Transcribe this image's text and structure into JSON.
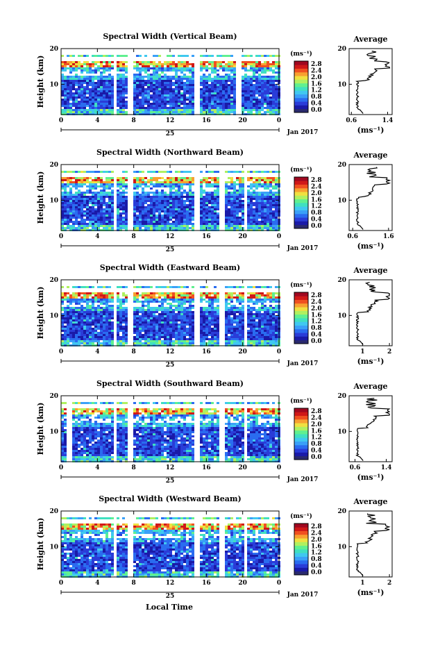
{
  "colors": {
    "colormap": [
      "#2a2a6e",
      "#1a1aa8",
      "#2a3cd8",
      "#2a6cf0",
      "#3aa0f8",
      "#40c8f0",
      "#40e0c0",
      "#60f090",
      "#b0f060",
      "#f0e040",
      "#f8a030",
      "#f05020",
      "#d01818",
      "#a00820"
    ],
    "background": "#ffffff"
  },
  "shared": {
    "date_label": "Jan 2017",
    "day_label": "25",
    "xlabel_bottom": "Local Time",
    "cbar_unit": "(ms⁻¹)",
    "cbar_ticks": [
      "0.0",
      "0.4",
      "0.8",
      "1.2",
      "1.6",
      "2.0",
      "2.4",
      "2.8"
    ],
    "profile_title": "Average",
    "profile_xlabel": "(ms⁻¹)"
  },
  "chart_data": [
    {
      "type": "heatmap",
      "title": "Spectral Width (Vertical Beam)",
      "ylabel": "Height (km)",
      "xticks": [
        "0",
        "4",
        "8",
        "12",
        "16",
        "20",
        "0"
      ],
      "xlim": [
        0,
        24
      ],
      "yticks": [
        "10",
        "20"
      ],
      "ylim": [
        1.5,
        20
      ],
      "colorbar": {
        "unit": "(ms⁻¹)",
        "range": [
          0.0,
          2.8
        ]
      },
      "profile": {
        "title": "Average",
        "xticks": [
          "0.6",
          "1.4"
        ],
        "xlim": [
          0.55,
          1.5
        ],
        "yticks": [
          "10",
          "20"
        ]
      }
    },
    {
      "type": "heatmap",
      "title": "Spectral Width (Northward Beam)",
      "ylabel": "Height (km)",
      "xticks": [
        "0",
        "4",
        "8",
        "12",
        "16",
        "20",
        "0"
      ],
      "xlim": [
        0,
        24
      ],
      "yticks": [
        "10",
        "20"
      ],
      "ylim": [
        1.5,
        20
      ],
      "colorbar": {
        "unit": "(ms⁻¹)",
        "range": [
          0.0,
          2.8
        ]
      },
      "profile": {
        "title": "Average",
        "xticks": [
          "0.6",
          "1.6"
        ],
        "xlim": [
          0.5,
          1.7
        ],
        "yticks": [
          "10",
          "20"
        ]
      }
    },
    {
      "type": "heatmap",
      "title": "Spectral Width (Eastward Beam)",
      "ylabel": "Height (km)",
      "xticks": [
        "0",
        "4",
        "8",
        "12",
        "16",
        "20",
        "0"
      ],
      "xlim": [
        0,
        24
      ],
      "yticks": [
        "10",
        "20"
      ],
      "ylim": [
        1.5,
        20
      ],
      "colorbar": {
        "unit": "(ms⁻¹)",
        "range": [
          0.0,
          2.8
        ]
      },
      "profile": {
        "title": "Average",
        "xticks": [
          "1",
          "2"
        ],
        "xlim": [
          0.5,
          2.1
        ],
        "yticks": [
          "10",
          "20"
        ]
      }
    },
    {
      "type": "heatmap",
      "title": "Spectral Width (Southward Beam)",
      "ylabel": "Height (km)",
      "xticks": [
        "0",
        "4",
        "8",
        "12",
        "16",
        "20",
        "0"
      ],
      "xlim": [
        0,
        24
      ],
      "yticks": [
        "10",
        "20"
      ],
      "ylim": [
        1.5,
        20
      ],
      "colorbar": {
        "unit": "(ms⁻¹)",
        "range": [
          0.0,
          2.8
        ]
      },
      "profile": {
        "title": "Average",
        "xticks": [
          "0.6",
          "1.4"
        ],
        "xlim": [
          0.45,
          1.55
        ],
        "yticks": [
          "10",
          "20"
        ]
      }
    },
    {
      "type": "heatmap",
      "title": "Spectral Width (Westward Beam)",
      "ylabel": "Height (km)",
      "xticks": [
        "0",
        "4",
        "8",
        "12",
        "16",
        "20",
        "0"
      ],
      "xlim": [
        0,
        24
      ],
      "yticks": [
        "10",
        "20"
      ],
      "ylim": [
        1.5,
        20
      ],
      "colorbar": {
        "unit": "(ms⁻¹)",
        "range": [
          0.0,
          2.8
        ]
      },
      "profile": {
        "title": "Average",
        "xticks": [
          "1",
          "2"
        ],
        "xlim": [
          0.5,
          2.1
        ],
        "yticks": [
          "10",
          "20"
        ]
      }
    }
  ]
}
